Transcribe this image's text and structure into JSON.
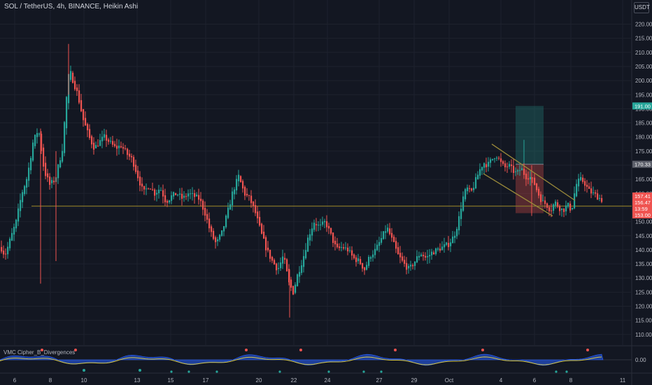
{
  "header": {
    "symbol_line": "SOL / TetherUS, 4h, BINANCE, Heikin Ashi"
  },
  "scale": {
    "currency": "USDT"
  },
  "indicator": {
    "name": "VMC Cipher_B_Divergences",
    "zero_label": "0.00"
  },
  "colors": {
    "background": "#131722",
    "up": "#26a69a",
    "down": "#ef5350",
    "grid": "#1e222d",
    "support_line": "#8c7a2a",
    "channel": "#9a8a3a",
    "target_zone": "rgba(38,166,154,0.25)",
    "stop_zone": "rgba(239,83,80,0.30)"
  },
  "chart_data": {
    "type": "candlestick",
    "title": "SOL / TetherUS, 4h, BINANCE, Heikin Ashi",
    "y_ticks": [
      220,
      215,
      210,
      205,
      200,
      195,
      190,
      185,
      180,
      175,
      170,
      165,
      160,
      155,
      150,
      145,
      140,
      135,
      130,
      125,
      120,
      115,
      110
    ],
    "y_range": [
      106,
      226
    ],
    "x_tick_labels": [
      "6",
      "8",
      "10",
      "13",
      "15",
      "17",
      "20",
      "22",
      "24",
      "27",
      "29",
      "Oct",
      "4",
      "6",
      "8",
      "11"
    ],
    "price_labels": [
      {
        "value": "191.00",
        "price": 191.0,
        "role": "target"
      },
      {
        "value": "170.33",
        "price": 170.33,
        "role": "entry"
      },
      {
        "value": "157.41",
        "price": 157.41,
        "role": "current"
      },
      {
        "value": "156.47",
        "price": 156.47,
        "role": "current"
      },
      {
        "value": "13:59",
        "price": 155.3,
        "role": "countdown"
      },
      {
        "value": "153.00",
        "price": 153.0,
        "role": "stop"
      }
    ],
    "support_level": 155.5,
    "close_anchors": [
      [
        0,
        141
      ],
      [
        6,
        138
      ],
      [
        14,
        144
      ],
      [
        22,
        150
      ],
      [
        30,
        160
      ],
      [
        38,
        166
      ],
      [
        46,
        178
      ],
      [
        54,
        183
      ],
      [
        62,
        168
      ],
      [
        70,
        163
      ],
      [
        78,
        165
      ],
      [
        88,
        176
      ],
      [
        94,
        194
      ],
      [
        98,
        204
      ],
      [
        102,
        201
      ],
      [
        110,
        195
      ],
      [
        118,
        186
      ],
      [
        126,
        180
      ],
      [
        134,
        176
      ],
      [
        140,
        178
      ],
      [
        148,
        180
      ],
      [
        156,
        178
      ],
      [
        164,
        176
      ],
      [
        172,
        177
      ],
      [
        180,
        174
      ],
      [
        188,
        172
      ],
      [
        196,
        166
      ],
      [
        204,
        160
      ],
      [
        212,
        163
      ],
      [
        220,
        160
      ],
      [
        228,
        162
      ],
      [
        236,
        157
      ],
      [
        244,
        159
      ],
      [
        252,
        160
      ],
      [
        260,
        158
      ],
      [
        268,
        160
      ],
      [
        276,
        159
      ],
      [
        284,
        158
      ],
      [
        292,
        153
      ],
      [
        300,
        146
      ],
      [
        308,
        142
      ],
      [
        316,
        146
      ],
      [
        324,
        153
      ],
      [
        332,
        161
      ],
      [
        340,
        166
      ],
      [
        348,
        160
      ],
      [
        356,
        158
      ],
      [
        364,
        153
      ],
      [
        372,
        146
      ],
      [
        380,
        140
      ],
      [
        388,
        136
      ],
      [
        396,
        133
      ],
      [
        404,
        138
      ],
      [
        412,
        128
      ],
      [
        418,
        125
      ],
      [
        424,
        131
      ],
      [
        432,
        137
      ],
      [
        440,
        145
      ],
      [
        448,
        150
      ],
      [
        456,
        148
      ],
      [
        464,
        150
      ],
      [
        472,
        145
      ],
      [
        480,
        140
      ],
      [
        488,
        141
      ],
      [
        496,
        140
      ],
      [
        504,
        137
      ],
      [
        512,
        136
      ],
      [
        520,
        133
      ],
      [
        528,
        138
      ],
      [
        536,
        140
      ],
      [
        544,
        144
      ],
      [
        552,
        148
      ],
      [
        560,
        143
      ],
      [
        568,
        138
      ],
      [
        576,
        135
      ],
      [
        584,
        133
      ],
      [
        592,
        136
      ],
      [
        600,
        139
      ],
      [
        608,
        137
      ],
      [
        616,
        139
      ],
      [
        624,
        140
      ],
      [
        632,
        141
      ],
      [
        640,
        142
      ],
      [
        648,
        145
      ],
      [
        654,
        150
      ],
      [
        660,
        158
      ],
      [
        666,
        162
      ],
      [
        672,
        160
      ],
      [
        678,
        164
      ],
      [
        684,
        168
      ],
      [
        690,
        171
      ],
      [
        696,
        170
      ],
      [
        702,
        172
      ],
      [
        708,
        174
      ],
      [
        714,
        171
      ],
      [
        720,
        169
      ],
      [
        726,
        170
      ],
      [
        732,
        168
      ],
      [
        738,
        167
      ],
      [
        744,
        169
      ],
      [
        750,
        166
      ],
      [
        756,
        166
      ],
      [
        762,
        164
      ],
      [
        768,
        160
      ],
      [
        774,
        157
      ],
      [
        780,
        156
      ],
      [
        786,
        154
      ],
      [
        792,
        157
      ],
      [
        798,
        155
      ],
      [
        804,
        154
      ],
      [
        810,
        156
      ],
      [
        816,
        154
      ],
      [
        822,
        163
      ],
      [
        828,
        165
      ],
      [
        834,
        164
      ],
      [
        840,
        161
      ],
      [
        846,
        160
      ],
      [
        852,
        159
      ],
      [
        858,
        158
      ],
      [
        862,
        157
      ]
    ],
    "long_position": {
      "entry": 170.33,
      "target": 191.0,
      "stop": 153.0
    },
    "channel": {
      "upper": [
        [
          703,
          177.5
        ],
        [
          822,
          157.5
        ]
      ],
      "lower": [
        [
          691,
          167.0
        ],
        [
          790,
          152.0
        ]
      ]
    }
  }
}
